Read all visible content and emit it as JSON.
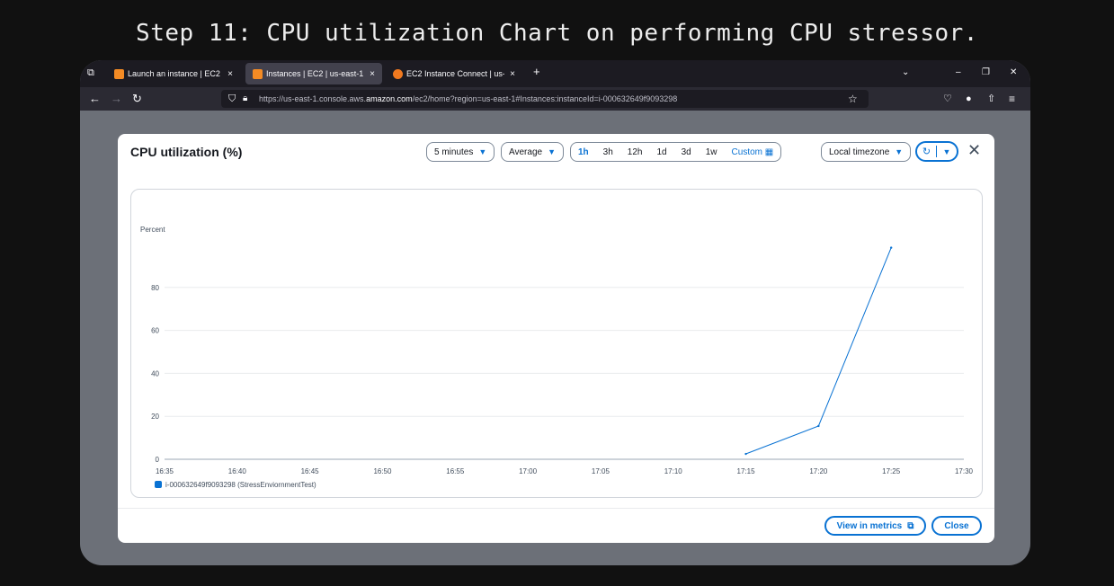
{
  "caption": "Step 11: CPU utilization Chart on performing CPU stressor.",
  "browser": {
    "tabs": [
      {
        "label": "Launch an instance | EC2 | us-e",
        "active": false
      },
      {
        "label": "Instances | EC2 | us-east-1",
        "active": true
      },
      {
        "label": "EC2 Instance Connect | us-east-",
        "active": false
      }
    ],
    "new_tab": "+",
    "tab_close": "×",
    "url_prefix": "https://us-east-1.console.aws.",
    "url_domain": "amazon.com",
    "url_suffix": "/ec2/home?region=us-east-1#Instances:instanceId=i-000632649f9093298"
  },
  "modal": {
    "title": "CPU utilization (%)",
    "period": "5 minutes",
    "statistic": "Average",
    "ranges": [
      "1h",
      "3h",
      "12h",
      "1d",
      "3d",
      "1w"
    ],
    "active_range": "1h",
    "custom_label": "Custom",
    "timezone": "Local timezone",
    "view_metrics_label": "View in metrics",
    "close_label": "Close"
  },
  "chart_data": {
    "type": "line",
    "ylabel": "Percent",
    "xlabel": "",
    "ylim": [
      0,
      100
    ],
    "yticks": [
      0,
      20,
      40,
      60,
      80
    ],
    "xticks": [
      "16:35",
      "16:40",
      "16:45",
      "16:50",
      "16:55",
      "17:00",
      "17:05",
      "17:10",
      "17:15",
      "17:20",
      "17:25",
      "17:30"
    ],
    "grid": true,
    "legend": "bottom-left",
    "series": [
      {
        "name": "i-000632649f9093298 (StressEnviornmentTest)",
        "color": "#0972d3",
        "x": [
          "17:15",
          "17:20",
          "17:25"
        ],
        "values": [
          2.5,
          15.5,
          98.5
        ]
      }
    ]
  }
}
